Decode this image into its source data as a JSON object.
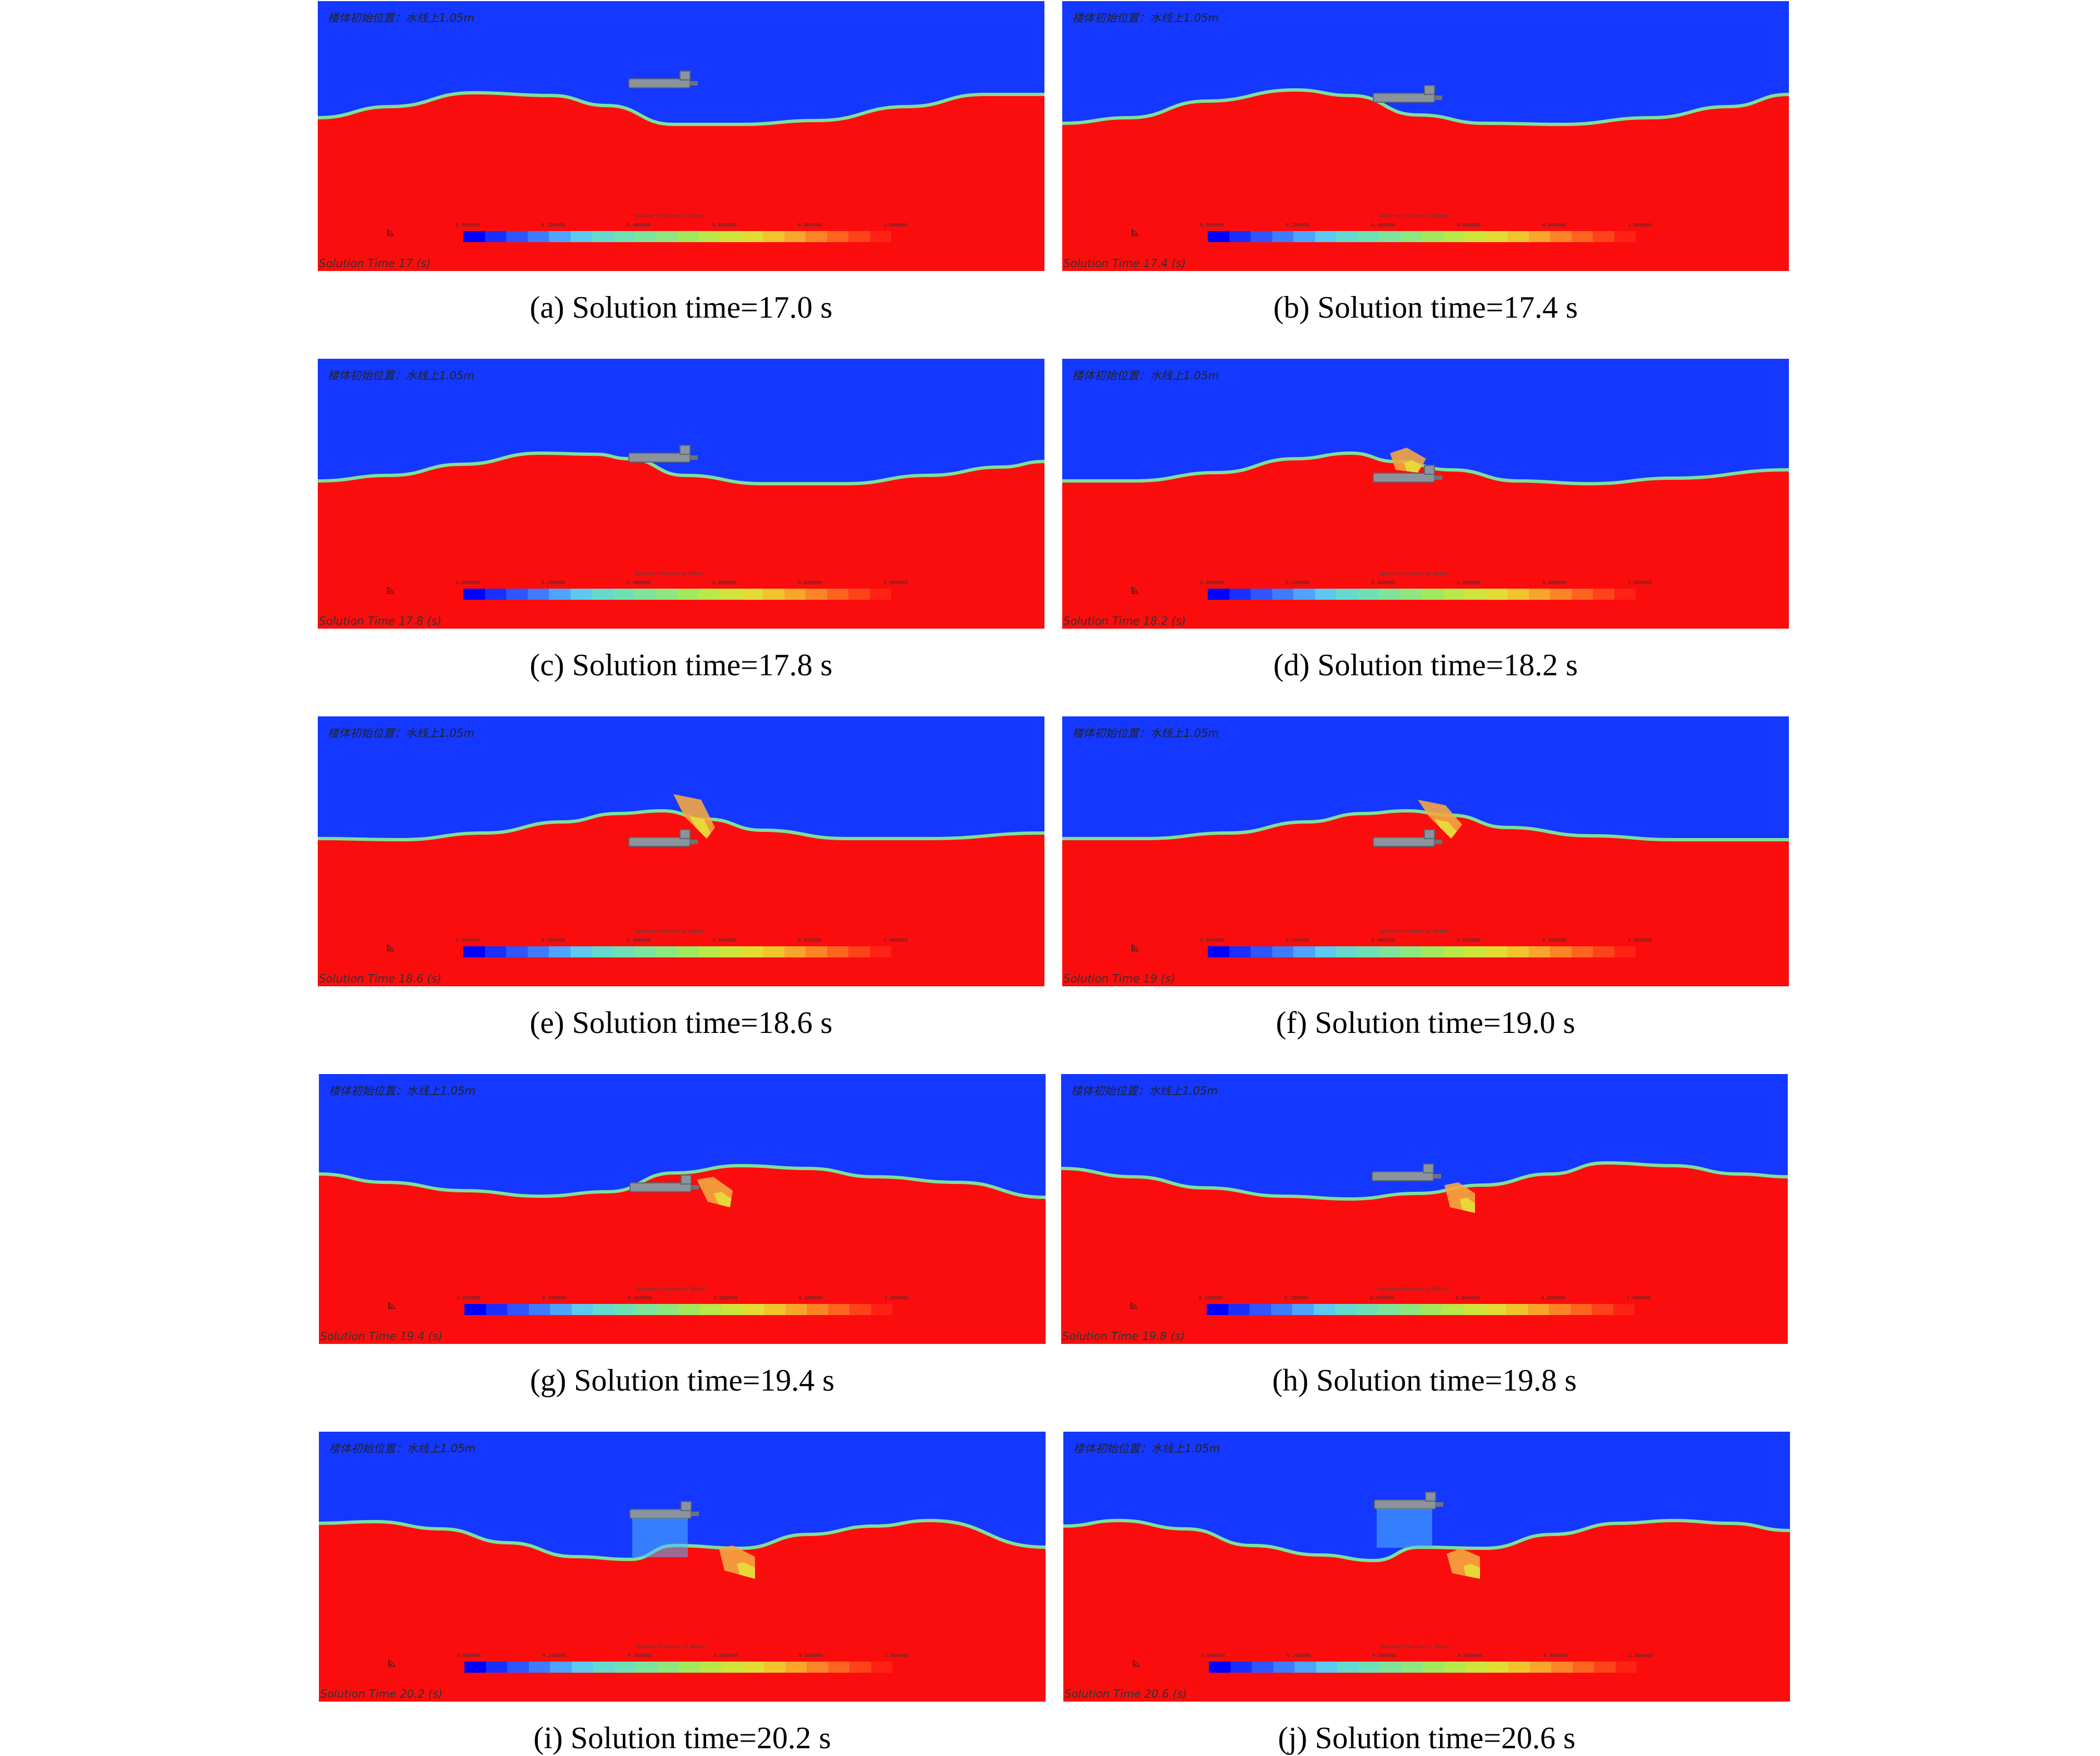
{
  "header_text": "楼体初始位置：水线上1.05m",
  "legend": {
    "title": "Volume Fraction of Water",
    "ticks": [
      "0.000000",
      "0.200000",
      "0.400000",
      "0.600000",
      "0.800000",
      "1.000000"
    ],
    "colors": [
      "#0000ff",
      "#1a2fff",
      "#2e55ff",
      "#3f7bff",
      "#50a2ff",
      "#5ec8ef",
      "#66d9cf",
      "#6fe0b5",
      "#7fe39c",
      "#8ee67f",
      "#a2e85f",
      "#b8e84a",
      "#cfe53c",
      "#e3dd33",
      "#f1c42e",
      "#f8a52b",
      "#fb8426",
      "#fd6420",
      "#fe431a",
      "#ff2215"
    ]
  },
  "colors": {
    "air": "#1438ff",
    "water": "#fc0d0d",
    "interface": "#7fdf9a",
    "hull": "#8b949c"
  },
  "panels": [
    {
      "caption": "(a) Solution time=17.0 s",
      "time_text": "Solution Time 17 (s)",
      "hull": "surface"
    },
    {
      "caption": "(b) Solution time=17.4 s",
      "time_text": "Solution Time 17.4 (s)",
      "hull": "surface"
    },
    {
      "caption": "(c) Solution time=17.8 s",
      "time_text": "Solution Time 17.8 (s)",
      "hull": "surface"
    },
    {
      "caption": "(d) Solution time=18.2 s",
      "time_text": "Solution Time 18.2 (s)",
      "hull": "submerged"
    },
    {
      "caption": "(e) Solution time=18.6 s",
      "time_text": "Solution Time 18.6 (s)",
      "hull": "submerged"
    },
    {
      "caption": "(f) Solution time=19.0 s",
      "time_text": "Solution Time 19 (s)",
      "hull": "submerged"
    },
    {
      "caption": "(g) Solution time=19.4 s",
      "time_text": "Solution Time 19.4 (s)",
      "hull": "surface"
    },
    {
      "caption": "(h) Solution time=19.8 s",
      "time_text": "Solution Time 19.8 (s)",
      "hull": "surface"
    },
    {
      "caption": "(i) Solution time=20.2 s",
      "time_text": "Solution Time 20.2 (s)",
      "hull": "lifted"
    },
    {
      "caption": "(j) Solution time=20.6 s",
      "time_text": "Solution Time 20.6 (s)",
      "hull": "lifted"
    }
  ]
}
